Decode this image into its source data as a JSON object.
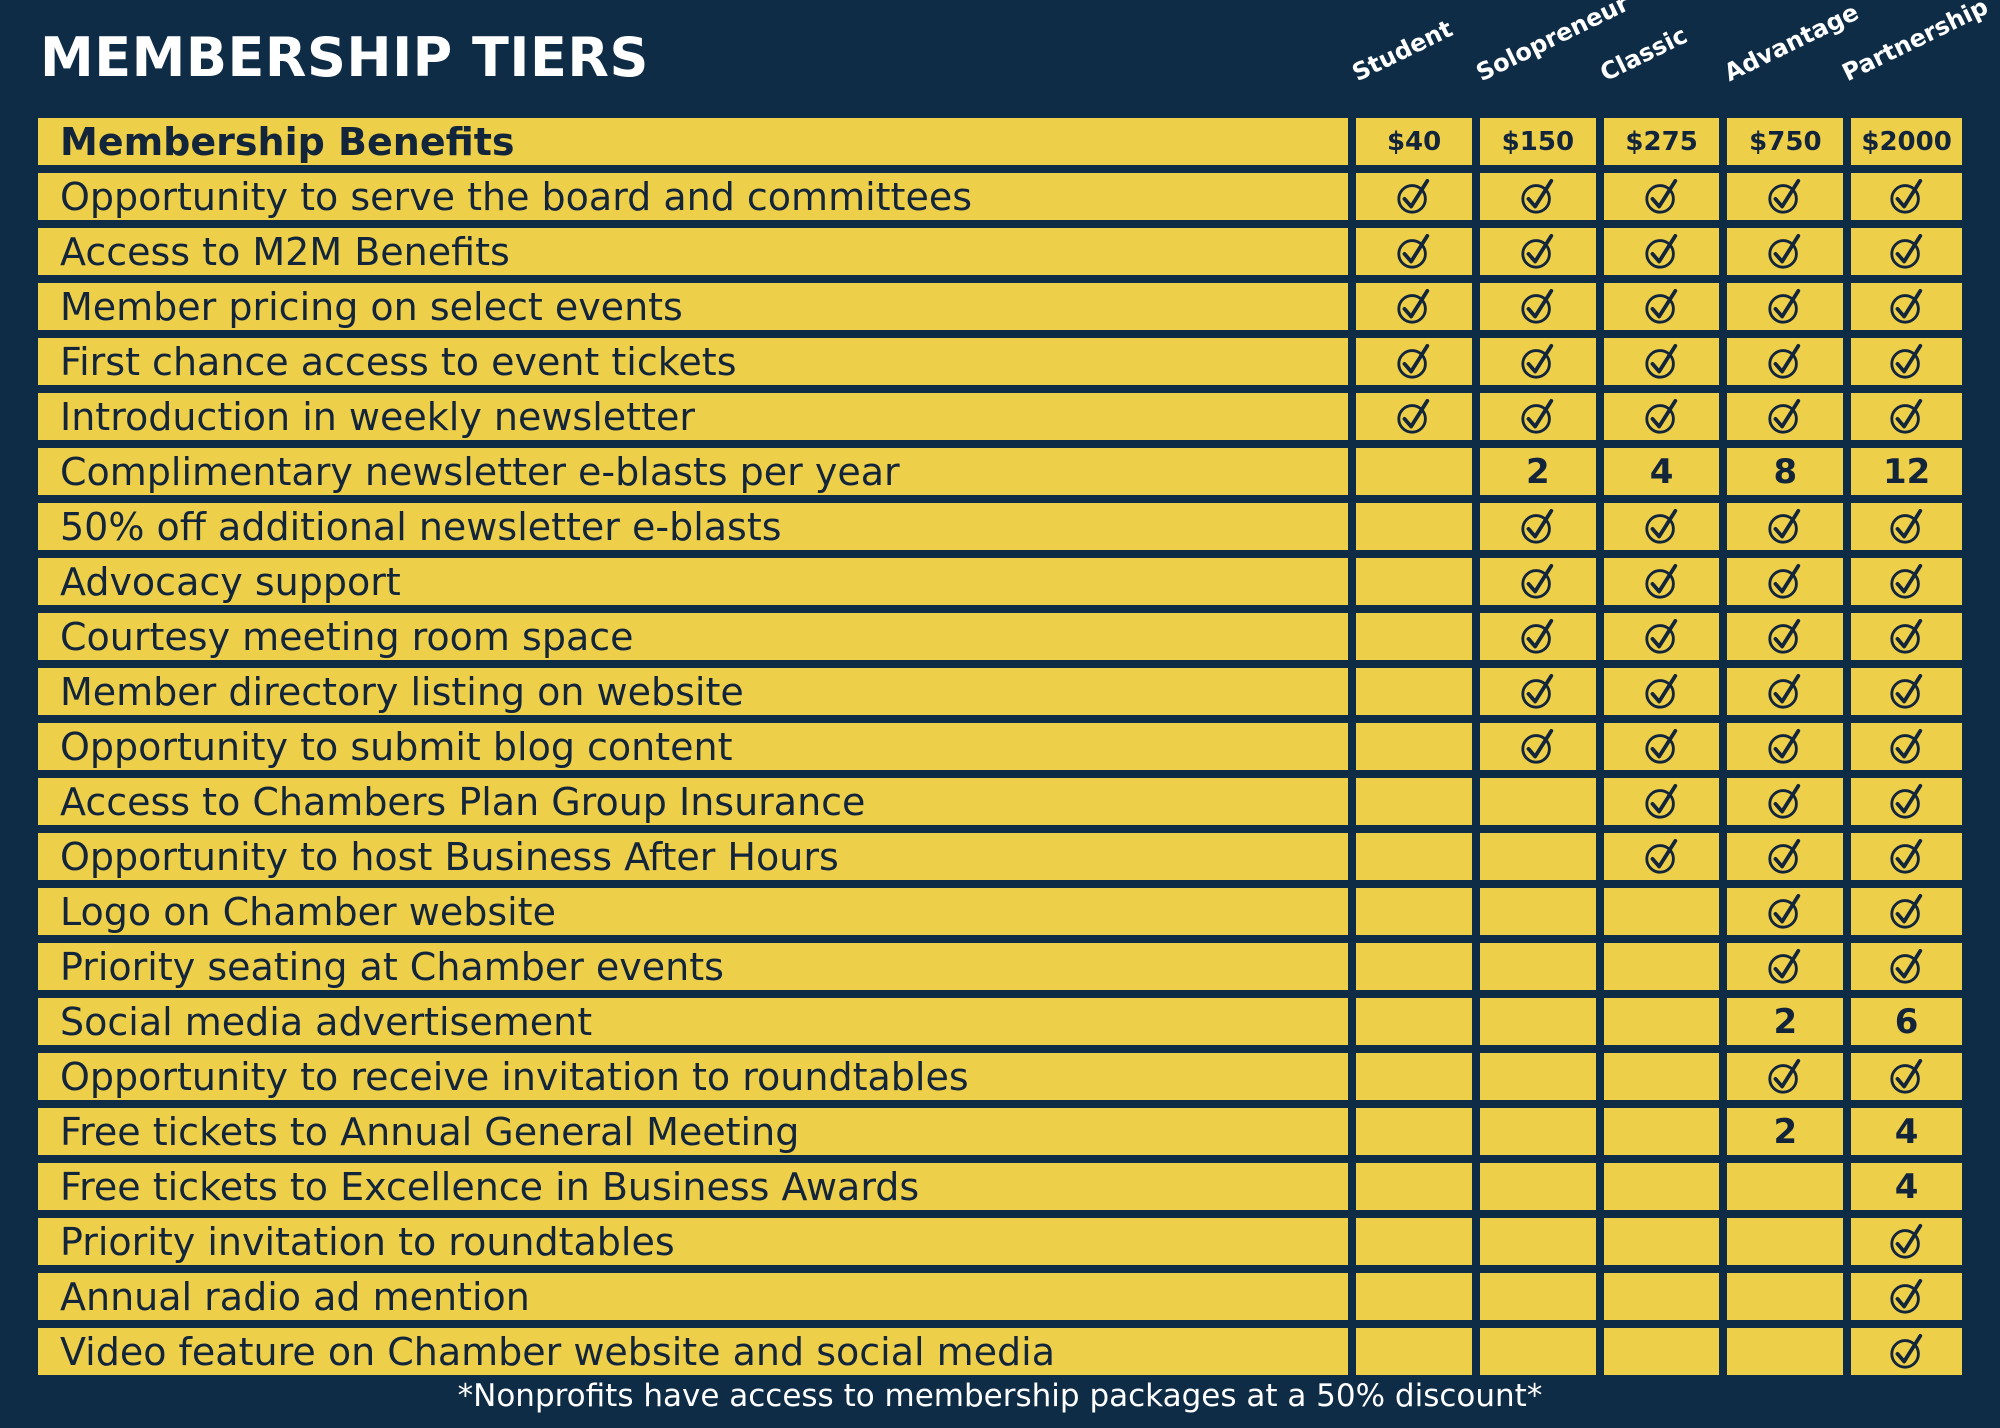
{
  "title": "MEMBERSHIP TIERS",
  "tiers": [
    {
      "name": "Student",
      "price": "$40"
    },
    {
      "name": "Solopreneur",
      "price": "$150"
    },
    {
      "name": "Classic",
      "price": "$275"
    },
    {
      "name": "Advantage",
      "price": "$750"
    },
    {
      "name": "Partnership",
      "price": "$2000"
    }
  ],
  "benefits_header": "Membership Benefits",
  "rows": [
    {
      "label": "Opportunity to serve the board and committees",
      "values": [
        "check",
        "check",
        "check",
        "check",
        "check"
      ]
    },
    {
      "label": "Access to M2M Benefits",
      "values": [
        "check",
        "check",
        "check",
        "check",
        "check"
      ]
    },
    {
      "label": "Member pricing on select events",
      "values": [
        "check",
        "check",
        "check",
        "check",
        "check"
      ]
    },
    {
      "label": "First chance access to event tickets",
      "values": [
        "check",
        "check",
        "check",
        "check",
        "check"
      ]
    },
    {
      "label": "Introduction in weekly newsletter",
      "values": [
        "check",
        "check",
        "check",
        "check",
        "check"
      ]
    },
    {
      "label": "Complimentary newsletter e-blasts per year",
      "values": [
        "",
        "2",
        "4",
        "8",
        "12"
      ]
    },
    {
      "label": "50% off additional newsletter e-blasts",
      "values": [
        "",
        "check",
        "check",
        "check",
        "check"
      ]
    },
    {
      "label": "Advocacy support",
      "values": [
        "",
        "check",
        "check",
        "check",
        "check"
      ]
    },
    {
      "label": "Courtesy meeting room space",
      "values": [
        "",
        "check",
        "check",
        "check",
        "check"
      ]
    },
    {
      "label": "Member directory listing on website",
      "values": [
        "",
        "check",
        "check",
        "check",
        "check"
      ]
    },
    {
      "label": "Opportunity to submit blog content",
      "values": [
        "",
        "check",
        "check",
        "check",
        "check"
      ]
    },
    {
      "label": "Access to Chambers Plan Group Insurance",
      "values": [
        "",
        "",
        "check",
        "check",
        "check"
      ]
    },
    {
      "label": "Opportunity to host Business After Hours",
      "values": [
        "",
        "",
        "check",
        "check",
        "check"
      ]
    },
    {
      "label": "Logo on Chamber website",
      "values": [
        "",
        "",
        "",
        "check",
        "check"
      ]
    },
    {
      "label": "Priority seating at Chamber events",
      "values": [
        "",
        "",
        "",
        "check",
        "check"
      ]
    },
    {
      "label": "Social media advertisement",
      "values": [
        "",
        "",
        "",
        "2",
        "6"
      ]
    },
    {
      "label": "Opportunity to receive invitation to roundtables",
      "values": [
        "",
        "",
        "",
        "check",
        "check"
      ]
    },
    {
      "label": "Free tickets to Annual General Meeting",
      "values": [
        "",
        "",
        "",
        "2",
        "4"
      ]
    },
    {
      "label": "Free tickets to Excellence in Business Awards",
      "values": [
        "",
        "",
        "",
        "",
        "4"
      ]
    },
    {
      "label": "Priority invitation to roundtables",
      "values": [
        "",
        "",
        "",
        "",
        "check"
      ]
    },
    {
      "label": "Annual radio ad mention",
      "values": [
        "",
        "",
        "",
        "",
        "check"
      ]
    },
    {
      "label": "Video feature on Chamber website and social media",
      "values": [
        "",
        "",
        "",
        "",
        "check"
      ]
    }
  ],
  "footnote": "*Nonprofits have access to membership packages at a 50% discount*",
  "colors": {
    "background": "#0f2c47",
    "cell": "#eecf4a",
    "text": "#12253b"
  },
  "icons": {
    "check": "check-circle-icon"
  }
}
